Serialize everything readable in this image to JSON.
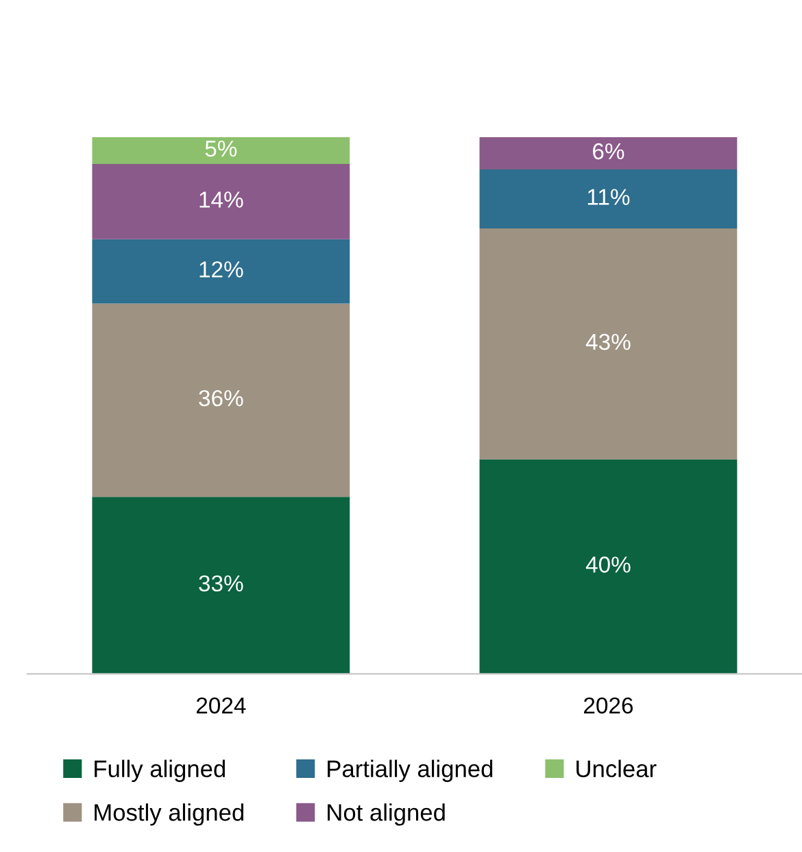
{
  "chart_data": {
    "type": "bar",
    "stacked": true,
    "categories": [
      "2024",
      "2026"
    ],
    "series": [
      {
        "name": "Fully aligned",
        "color": "#0b6340",
        "values": [
          33,
          40
        ],
        "value_labels": [
          "33%",
          "40%"
        ]
      },
      {
        "name": "Mostly aligned",
        "color": "#9e9282",
        "values": [
          36,
          43
        ],
        "value_labels": [
          "36%",
          "43%"
        ]
      },
      {
        "name": "Partially aligned",
        "color": "#2e6e8e",
        "values": [
          12,
          11
        ],
        "value_labels": [
          "12%",
          "11%"
        ]
      },
      {
        "name": "Not aligned",
        "color": "#8a5a8a",
        "values": [
          14,
          6
        ],
        "value_labels": [
          "14%",
          "6%"
        ]
      },
      {
        "name": "Unclear",
        "color": "#8cc06c",
        "values": [
          5,
          null
        ],
        "value_labels": [
          "5%",
          null
        ]
      }
    ],
    "ylim": [
      0,
      100
    ],
    "tick_labels": "x",
    "legend": "bottom",
    "grid": false
  }
}
